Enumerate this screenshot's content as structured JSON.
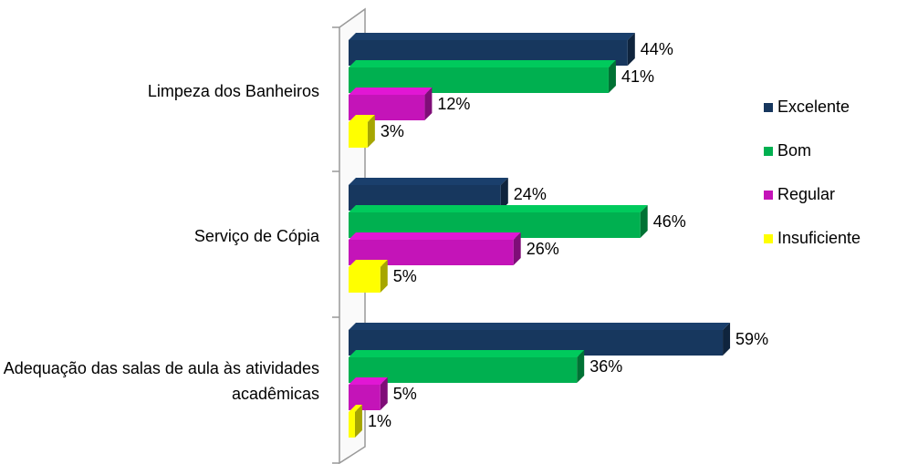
{
  "chart_data": {
    "type": "bar",
    "orientation": "horizontal",
    "categories": [
      "Limpeza dos Banheiros",
      "Serviço de Cópia",
      "Adequação das salas de aula às atividades acadêmicas"
    ],
    "series": [
      {
        "name": "Excelente",
        "color": "#17375e",
        "values": [
          44,
          24,
          59
        ],
        "value_labels": [
          "44%",
          "24%",
          "59%"
        ]
      },
      {
        "name": "Bom",
        "color": "#00b050",
        "values": [
          41,
          46,
          36
        ],
        "value_labels": [
          "41%",
          "46%",
          "36%"
        ]
      },
      {
        "name": "Regular",
        "color": "#c414b8",
        "values": [
          12,
          26,
          5
        ],
        "value_labels": [
          "12%",
          "26%",
          "5%"
        ]
      },
      {
        "name": "Insuficiente",
        "color": "#ffff00",
        "values": [
          3,
          5,
          1
        ],
        "value_labels": [
          "3%",
          "5%",
          "1%"
        ]
      }
    ],
    "legend": "right"
  }
}
